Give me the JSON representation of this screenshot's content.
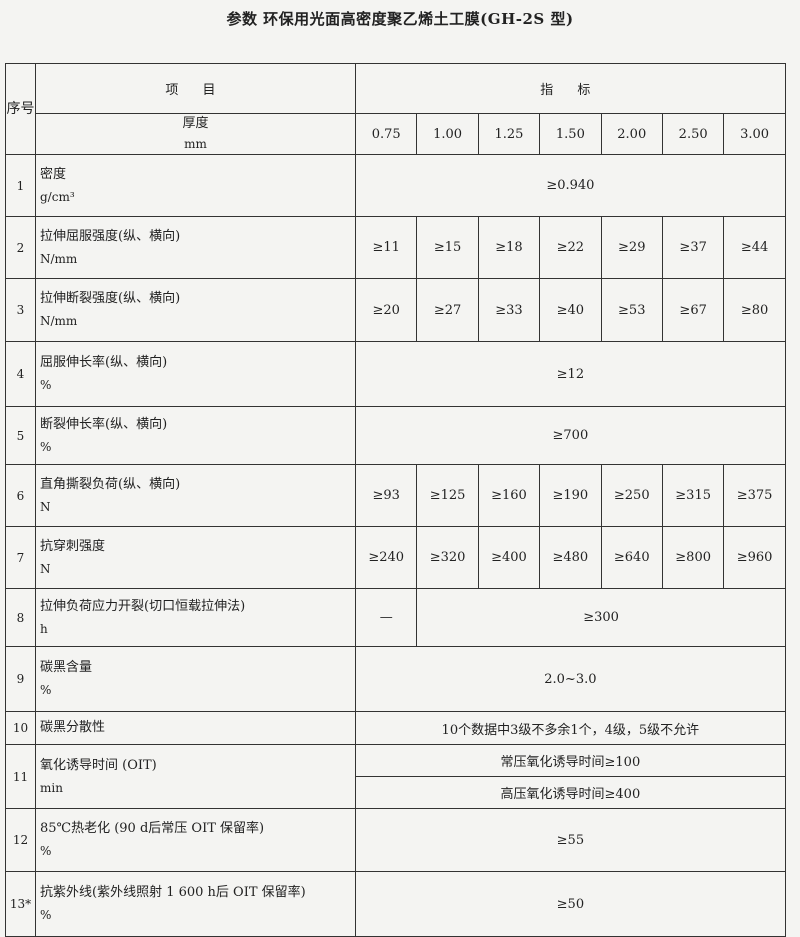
{
  "title": "参数 环保用光面高密度聚乙烯土工膜(GH-2S 型)",
  "header": {
    "seq": "序号",
    "item": "项  目",
    "spec": "指  标",
    "thickness_label": "厚度",
    "thickness_unit": "mm",
    "thicknesses": [
      "0.75",
      "1.00",
      "1.25",
      "1.50",
      "2.00",
      "2.50",
      "3.00"
    ]
  },
  "rows": [
    {
      "no": "1",
      "name": "密度",
      "unit": "g/cm³",
      "values": [
        "≥0.940"
      ]
    },
    {
      "no": "2",
      "name": "拉伸屈服强度(纵、横向)",
      "unit": "N/mm",
      "values": [
        "≥11",
        "≥15",
        "≥18",
        "≥22",
        "≥29",
        "≥37",
        "≥44"
      ]
    },
    {
      "no": "3",
      "name": "拉伸断裂强度(纵、横向)",
      "unit": "N/mm",
      "values": [
        "≥20",
        "≥27",
        "≥33",
        "≥40",
        "≥53",
        "≥67",
        "≥80"
      ]
    },
    {
      "no": "4",
      "name": "屈服伸长率(纵、横向)",
      "unit": "%",
      "values": [
        "≥12"
      ]
    },
    {
      "no": "5",
      "name": "断裂伸长率(纵、横向)",
      "unit": "%",
      "values": [
        "≥700"
      ]
    },
    {
      "no": "6",
      "name": "直角撕裂负荷(纵、横向)",
      "unit": "N",
      "values": [
        "≥93",
        "≥125",
        "≥160",
        "≥190",
        "≥250",
        "≥315",
        "≥375"
      ]
    },
    {
      "no": "7",
      "name": "抗穿刺强度",
      "unit": "N",
      "values": [
        "≥240",
        "≥320",
        "≥400",
        "≥480",
        "≥640",
        "≥800",
        "≥960"
      ]
    },
    {
      "no": "8",
      "name": "拉伸负荷应力开裂(切口恒载拉伸法)",
      "unit": "h",
      "values": [
        "—",
        "≥300"
      ]
    },
    {
      "no": "9",
      "name": "碳黑含量",
      "unit": "%",
      "values": [
        "2.0~3.0"
      ]
    },
    {
      "no": "10",
      "name": "碳黑分散性",
      "unit": "",
      "values": [
        "10个数据中3级不多余1个，4级，5级不允许"
      ]
    },
    {
      "no": "11",
      "name": "氧化诱导时间 (OIT)",
      "unit": "min",
      "values": [
        "常压氧化诱导时间≥100",
        "高压氧化诱导时间≥400"
      ]
    },
    {
      "no": "12",
      "name": "85℃热老化 (90 d后常压 OIT 保留率)",
      "unit": "%",
      "values": [
        "≥55"
      ]
    },
    {
      "no": "13*",
      "name": "抗紫外线(紫外线照射 1 600 h后 OIT 保留率)",
      "unit": "%",
      "values": [
        "≥50"
      ]
    }
  ]
}
